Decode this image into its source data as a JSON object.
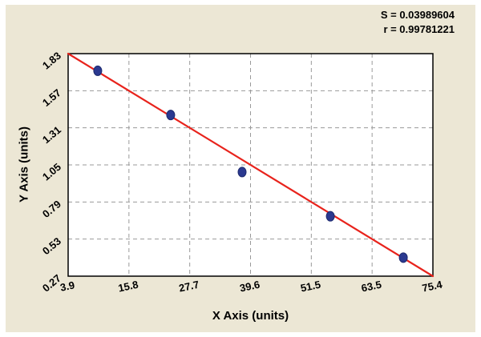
{
  "stats": {
    "s_label": "S = 0.03989604",
    "r_label": "r = 0.99781221"
  },
  "chart_data": {
    "type": "scatter",
    "title": "",
    "xlabel": "X Axis (units)",
    "ylabel": "Y Axis (units)",
    "xlim": [
      3.9,
      75.4
    ],
    "ylim": [
      0.27,
      1.83
    ],
    "x_tick_labels": [
      "3.9",
      "15.8",
      "27.7",
      "39.6",
      "51.5",
      "63.5",
      "75.4"
    ],
    "y_tick_labels": [
      "0.27",
      "0.53",
      "0.79",
      "1.05",
      "1.31",
      "1.57",
      "1.83"
    ],
    "grid": "dashed",
    "legend": "none",
    "points": [
      {
        "x": 9.7,
        "y": 1.71
      },
      {
        "x": 24.0,
        "y": 1.4
      },
      {
        "x": 38.0,
        "y": 1.0
      },
      {
        "x": 55.3,
        "y": 0.69
      },
      {
        "x": 69.6,
        "y": 0.4
      }
    ],
    "regression_line": {
      "x1": 3.9,
      "y1": 1.83,
      "x2": 75.4,
      "y2": 0.27
    },
    "annotations": [
      "S = 0.03989604",
      "r = 0.99781221"
    ],
    "colors": {
      "background": "#ece7d5",
      "plot_background": "#ffffff",
      "grid": "#9a9a9a",
      "frame": "#000000",
      "line": "#e8231c",
      "point_fill": "#2b3990",
      "point_stroke": "#1d2a6e",
      "text": "#000000"
    }
  }
}
